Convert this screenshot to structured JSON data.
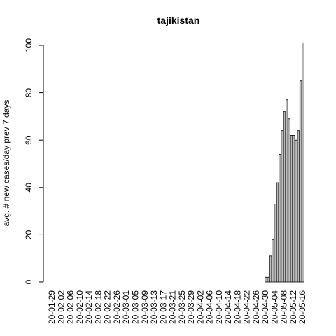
{
  "chart_data": {
    "type": "bar",
    "title": "tajikistan",
    "y_label": "avg. # new cases/day prev  7  days",
    "categories": [
      "20-01-29",
      null,
      null,
      null,
      "20-02-02",
      null,
      null,
      null,
      "20-02-06",
      null,
      null,
      null,
      "20-02-10",
      null,
      null,
      null,
      "20-02-14",
      null,
      null,
      null,
      "20-02-18",
      null,
      null,
      null,
      "20-02-22",
      null,
      null,
      null,
      "20-02-26",
      null,
      null,
      null,
      "20-03-01",
      null,
      null,
      null,
      "20-03-05",
      null,
      null,
      null,
      "20-03-09",
      null,
      null,
      null,
      "20-03-13",
      null,
      null,
      null,
      "20-03-17",
      null,
      null,
      null,
      "20-03-21",
      null,
      null,
      null,
      "20-03-25",
      null,
      null,
      null,
      "20-03-29",
      null,
      null,
      null,
      "20-04-02",
      null,
      null,
      null,
      "20-04-06",
      null,
      null,
      null,
      "20-04-10",
      null,
      null,
      null,
      "20-04-14",
      null,
      null,
      null,
      "20-04-18",
      null,
      null,
      null,
      "20-04-22",
      null,
      null,
      null,
      "20-04-26",
      null,
      null,
      null,
      "20-04-30",
      null,
      null,
      null,
      "20-05-04",
      null,
      null,
      null,
      "20-05-08",
      null,
      null,
      null,
      "20-05-12",
      null,
      null,
      null,
      "20-05-16"
    ],
    "values": [
      0,
      0,
      0,
      0,
      0,
      0,
      0,
      0,
      0,
      0,
      0,
      0,
      0,
      0,
      0,
      0,
      0,
      0,
      0,
      0,
      0,
      0,
      0,
      0,
      0,
      0,
      0,
      0,
      0,
      0,
      0,
      0,
      0,
      0,
      0,
      0,
      0,
      0,
      0,
      0,
      0,
      0,
      0,
      0,
      0,
      0,
      0,
      0,
      0,
      0,
      0,
      0,
      0,
      0,
      0,
      0,
      0,
      0,
      0,
      0,
      0,
      0,
      0,
      0,
      0,
      0,
      0,
      0,
      0,
      0,
      0,
      0,
      0,
      0,
      0,
      0,
      0,
      0,
      0,
      0,
      0,
      0,
      0,
      0,
      0,
      0,
      0,
      0,
      0,
      0,
      0,
      0,
      2,
      2,
      11,
      18,
      33,
      42,
      54,
      64,
      72,
      77,
      69,
      62,
      62,
      60,
      64,
      85,
      101
    ],
    "color": "#bebebe",
    "ylim": [
      0,
      105
    ],
    "yticks": [
      0,
      20,
      40,
      60,
      80,
      100
    ]
  }
}
